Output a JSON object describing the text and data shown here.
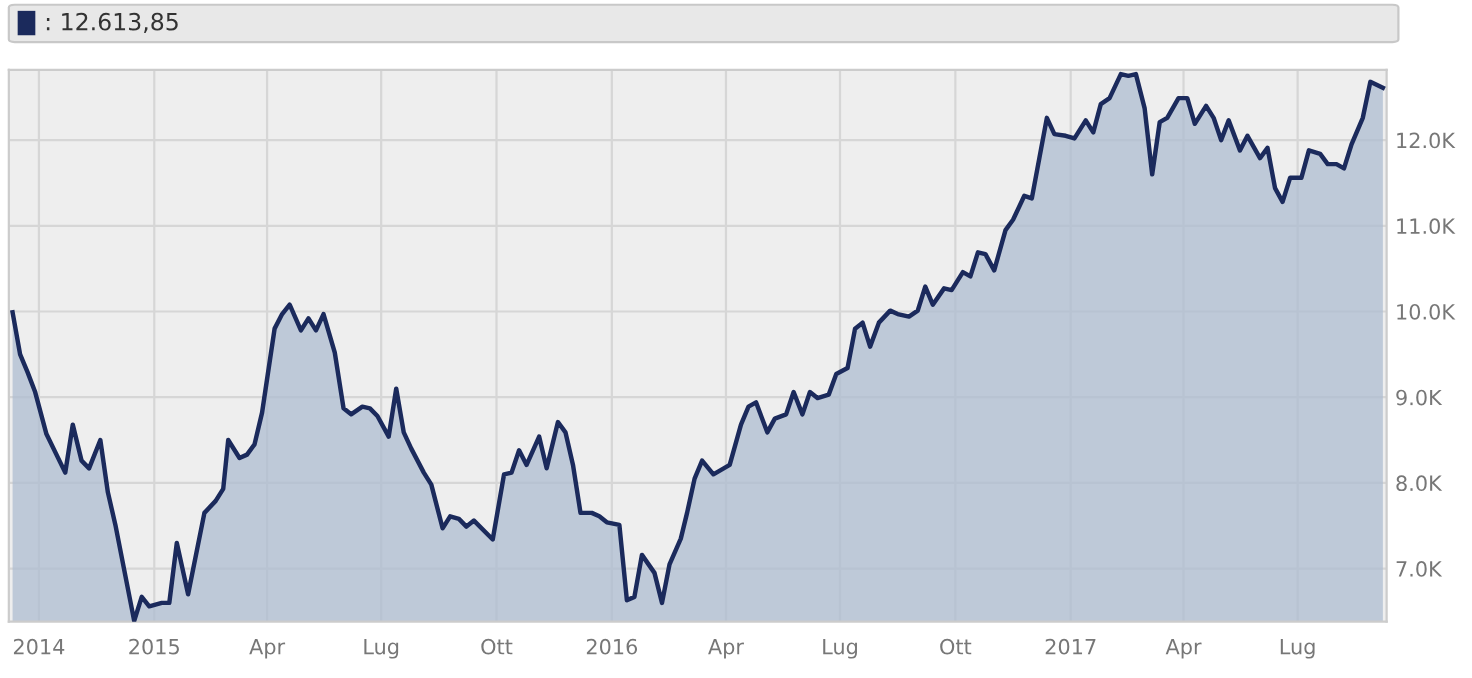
{
  "chart_data": {
    "type": "area",
    "annotations": [
      ": 12.613,85"
    ],
    "series": [
      {
        "color": "#1b2a5c",
        "x": [
          "2014-09-10",
          "2014-09-16",
          "2014-09-22",
          "2014-09-28",
          "2014-10-07",
          "2014-10-22",
          "2014-10-28",
          "2014-11-04",
          "2014-11-10",
          "2014-11-19",
          "2014-11-25",
          "2014-12-01",
          "2014-12-16",
          "2014-12-22",
          "2014-12-28",
          "2015-01-07",
          "2015-01-13",
          "2015-01-19",
          "2015-01-28",
          "2015-02-10",
          "2015-02-19",
          "2015-02-25",
          "2015-03-01",
          "2015-03-10",
          "2015-03-16",
          "2015-03-22",
          "2015-03-28",
          "2015-04-07",
          "2015-04-13",
          "2015-04-19",
          "2015-04-28",
          "2015-05-04",
          "2015-05-10",
          "2015-05-16",
          "2015-05-25",
          "2015-06-01",
          "2015-06-07",
          "2015-06-16",
          "2015-06-22",
          "2015-06-28",
          "2015-07-07",
          "2015-07-13",
          "2015-07-19",
          "2015-07-25",
          "2015-08-04",
          "2015-08-10",
          "2015-08-19",
          "2015-08-25",
          "2015-09-01",
          "2015-09-07",
          "2015-09-13",
          "2015-09-28",
          "2015-10-07",
          "2015-10-13",
          "2015-10-19",
          "2015-10-25",
          "2015-11-04",
          "2015-11-10",
          "2015-11-19",
          "2015-11-25",
          "2015-12-01",
          "2015-12-07",
          "2015-12-16",
          "2015-12-22",
          "2015-12-28",
          "2016-01-07",
          "2016-01-13",
          "2016-01-19",
          "2016-01-25",
          "2016-02-04",
          "2016-02-10",
          "2016-02-16",
          "2016-02-25",
          "2016-03-01",
          "2016-03-07",
          "2016-03-13",
          "2016-03-22",
          "2016-04-04",
          "2016-04-13",
          "2016-04-19",
          "2016-04-25",
          "2016-05-04",
          "2016-05-10",
          "2016-05-19",
          "2016-05-25",
          "2016-06-01",
          "2016-06-07",
          "2016-06-13",
          "2016-06-22",
          "2016-06-28",
          "2016-07-07",
          "2016-07-13",
          "2016-07-19",
          "2016-07-25",
          "2016-08-01",
          "2016-08-10",
          "2016-08-16",
          "2016-08-25",
          "2016-09-01",
          "2016-09-07",
          "2016-09-13",
          "2016-09-22",
          "2016-09-28",
          "2016-10-07",
          "2016-10-13",
          "2016-10-19",
          "2016-10-25",
          "2016-11-01",
          "2016-11-10",
          "2016-11-16",
          "2016-11-25",
          "2016-12-01",
          "2016-12-07",
          "2016-12-13",
          "2016-12-19",
          "2016-12-28",
          "2017-01-04",
          "2017-01-13",
          "2017-01-19",
          "2017-01-25",
          "2017-02-01",
          "2017-02-10",
          "2017-02-16",
          "2017-02-22",
          "2017-03-01",
          "2017-03-07",
          "2017-03-13",
          "2017-03-19",
          "2017-03-28",
          "2017-04-04",
          "2017-04-10",
          "2017-04-19",
          "2017-04-25",
          "2017-05-01",
          "2017-05-07",
          "2017-05-16",
          "2017-05-22",
          "2017-06-01",
          "2017-06-07",
          "2017-06-13",
          "2017-06-19",
          "2017-06-25",
          "2017-07-04",
          "2017-07-10",
          "2017-07-19",
          "2017-07-25",
          "2017-08-01",
          "2017-08-07",
          "2017-08-13",
          "2017-08-22",
          "2017-08-28",
          "2017-09-07"
        ],
        "values": [
          9990,
          9500,
          9290,
          9060,
          8570,
          8120,
          8680,
          8260,
          8170,
          8500,
          7890,
          7510,
          6390,
          6670,
          6560,
          6600,
          6600,
          7300,
          6700,
          7650,
          7790,
          7930,
          8500,
          8290,
          8330,
          8450,
          8820,
          9800,
          9970,
          10080,
          9780,
          9920,
          9780,
          9970,
          9520,
          8870,
          8800,
          8890,
          8870,
          8780,
          8540,
          9100,
          8590,
          8400,
          8120,
          7980,
          7470,
          7610,
          7580,
          7490,
          7560,
          7340,
          8100,
          8120,
          8380,
          8210,
          8540,
          8170,
          8710,
          8590,
          8210,
          7650,
          7650,
          7610,
          7540,
          7510,
          6630,
          6670,
          7160,
          6950,
          6600,
          7050,
          7350,
          7650,
          8050,
          8260,
          8100,
          8210,
          8680,
          8890,
          8940,
          8590,
          8750,
          8800,
          9060,
          8800,
          9060,
          8990,
          9030,
          9270,
          9340,
          9800,
          9870,
          9590,
          9870,
          10010,
          9970,
          9940,
          10010,
          10290,
          10080,
          10270,
          10250,
          10460,
          10410,
          10690,
          10670,
          10480,
          10950,
          11070,
          11350,
          11320,
          11790,
          12260,
          12070,
          12050,
          12020,
          12230,
          12090,
          12420,
          12490,
          12770,
          12750,
          12770,
          12370,
          11600,
          12210,
          12260,
          12490,
          12490,
          12190,
          12400,
          12260,
          12000,
          12230,
          11880,
          12050,
          11790,
          11910,
          11440,
          11280,
          11560,
          11560,
          11880,
          11840,
          11720,
          11720,
          11670,
          11950,
          12260,
          12680,
          12610
        ]
      }
    ],
    "xlim": [
      "2014-09-07",
      "2017-09-10"
    ],
    "xticks": [
      {
        "value": "2014-10-01",
        "label": "2014"
      },
      {
        "value": "2015-01-01",
        "label": "2015"
      },
      {
        "value": "2015-04-01",
        "label": "Apr"
      },
      {
        "value": "2015-07-01",
        "label": "Lug"
      },
      {
        "value": "2015-10-01",
        "label": "Ott"
      },
      {
        "value": "2016-01-01",
        "label": "2016"
      },
      {
        "value": "2016-04-01",
        "label": "Apr"
      },
      {
        "value": "2016-07-01",
        "label": "Lug"
      },
      {
        "value": "2016-10-01",
        "label": "Ott"
      },
      {
        "value": "2017-01-01",
        "label": "2017"
      },
      {
        "value": "2017-04-01",
        "label": "Apr"
      },
      {
        "value": "2017-07-01",
        "label": "Lug"
      }
    ],
    "ylim": [
      6380,
      12820
    ],
    "yticks": [
      {
        "value": 7000,
        "label": "7.0K"
      },
      {
        "value": 8000,
        "label": "8.0K"
      },
      {
        "value": 9000,
        "label": "9.0K"
      },
      {
        "value": 10000,
        "label": "10.0K"
      },
      {
        "value": 11000,
        "label": "11.0K"
      },
      {
        "value": 12000,
        "label": "12.0K"
      }
    ],
    "grid": true,
    "legend": false
  }
}
